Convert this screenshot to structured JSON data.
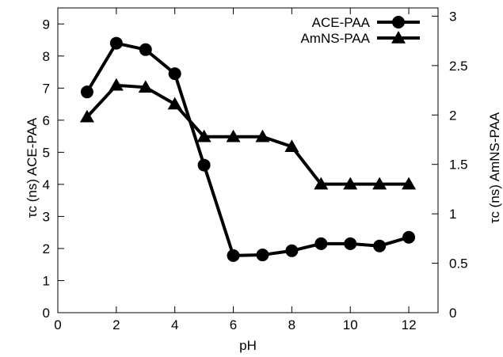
{
  "chart_data": {
    "type": "line",
    "xlabel": "pH",
    "ylabel_left": "τc (ns) ACE-PAA",
    "ylabel_right": "τc (ns) AmNS-PAA",
    "xlim": [
      0,
      13
    ],
    "ylim_left": [
      0,
      9.5
    ],
    "ylim_right": [
      0,
      3.0833
    ],
    "x_ticks": [
      "0",
      "2",
      "4",
      "6",
      "8",
      "10",
      "12"
    ],
    "y_left_ticks": [
      "0",
      "1",
      "2",
      "3",
      "4",
      "5",
      "6",
      "7",
      "8",
      "9"
    ],
    "y_right_ticks": [
      "0",
      "0.5",
      "1",
      "1.5",
      "2",
      "2.5",
      "3"
    ],
    "legend_position": "top-right",
    "grid": false,
    "series": [
      {
        "name": "ACE-PAA",
        "axis": "left",
        "marker": "circle",
        "x": [
          1,
          2,
          3,
          4,
          5,
          6,
          7,
          8,
          9,
          10,
          11,
          12
        ],
        "y": [
          6.88,
          8.4,
          8.2,
          7.45,
          4.6,
          1.78,
          1.8,
          1.93,
          2.15,
          2.15,
          2.08,
          2.35
        ]
      },
      {
        "name": "AmNS-PAA",
        "axis": "right",
        "marker": "triangle",
        "x": [
          1,
          2,
          3,
          4,
          5,
          6,
          7,
          8,
          9,
          10,
          11,
          12
        ],
        "y": [
          1.98,
          2.3,
          2.28,
          2.11,
          1.78,
          1.78,
          1.78,
          1.68,
          1.3,
          1.3,
          1.3,
          1.3
        ]
      }
    ]
  }
}
